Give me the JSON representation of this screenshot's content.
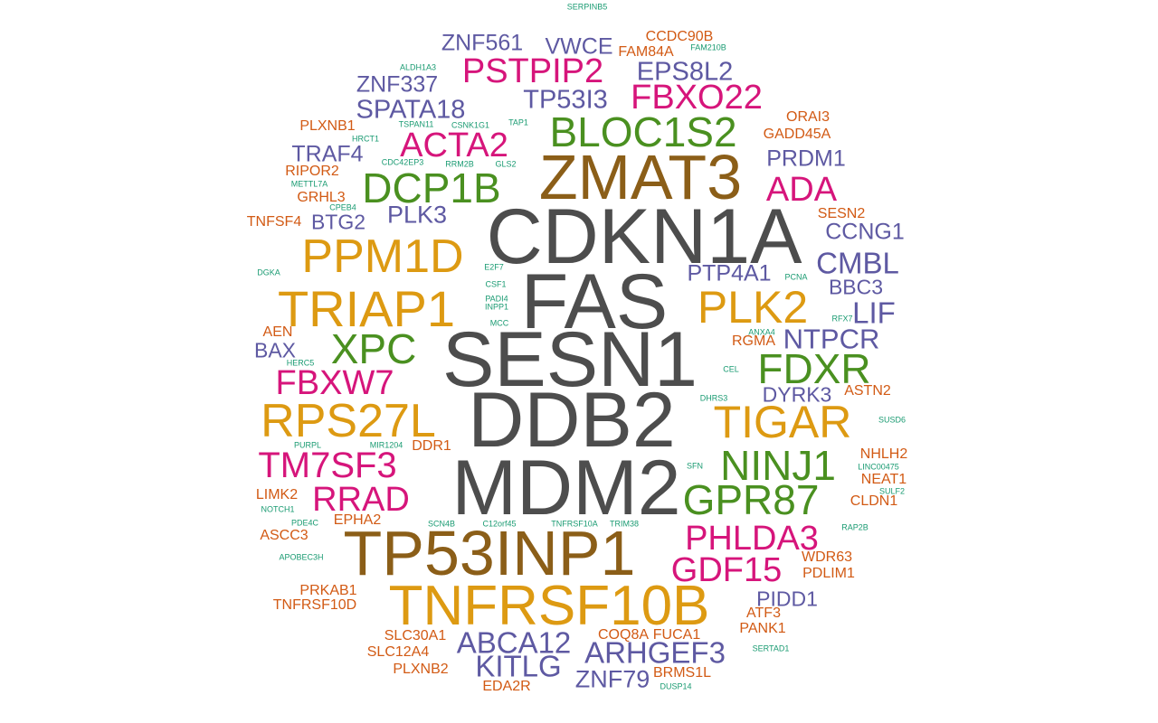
{
  "palette": {
    "gray": "#4d4d4d",
    "brown": "#8b5e18",
    "gold": "#dd9a12",
    "magenta": "#d6157b",
    "green": "#4a9020",
    "purple": "#5e59a2",
    "orange": "#d25a14",
    "teal": "#1a9b72"
  },
  "words": [
    {
      "text": "CDKN1A",
      "color": "gray"
    },
    {
      "text": "FAS",
      "color": "gray"
    },
    {
      "text": "SESN1",
      "color": "gray"
    },
    {
      "text": "DDB2",
      "color": "gray"
    },
    {
      "text": "MDM2",
      "color": "gray"
    },
    {
      "text": "ZMAT3",
      "color": "brown"
    },
    {
      "text": "TP53INP1",
      "color": "brown"
    },
    {
      "text": "TNFRSF10B",
      "color": "gold"
    },
    {
      "text": "PPM1D",
      "color": "gold"
    },
    {
      "text": "TRIAP1",
      "color": "gold"
    },
    {
      "text": "RPS27L",
      "color": "gold"
    },
    {
      "text": "TIGAR",
      "color": "gold"
    },
    {
      "text": "PLK2",
      "color": "gold"
    },
    {
      "text": "BLOC1S2",
      "color": "green"
    },
    {
      "text": "DCP1B",
      "color": "green"
    },
    {
      "text": "XPC",
      "color": "green"
    },
    {
      "text": "FDXR",
      "color": "green"
    },
    {
      "text": "NINJ1",
      "color": "green"
    },
    {
      "text": "GPR87",
      "color": "green"
    },
    {
      "text": "PSTPIP2",
      "color": "magenta"
    },
    {
      "text": "FBXO22",
      "color": "magenta"
    },
    {
      "text": "ACTA2",
      "color": "magenta"
    },
    {
      "text": "ADA",
      "color": "magenta"
    },
    {
      "text": "FBXW7",
      "color": "magenta"
    },
    {
      "text": "TM7SF3",
      "color": "magenta"
    },
    {
      "text": "RRAD",
      "color": "magenta"
    },
    {
      "text": "PHLDA3",
      "color": "magenta"
    },
    {
      "text": "GDF15",
      "color": "magenta"
    },
    {
      "text": "ZNF561",
      "color": "purple"
    },
    {
      "text": "VWCE",
      "color": "purple"
    },
    {
      "text": "EPS8L2",
      "color": "purple"
    },
    {
      "text": "ZNF337",
      "color": "purple"
    },
    {
      "text": "SPATA18",
      "color": "purple"
    },
    {
      "text": "TP53I3",
      "color": "purple"
    },
    {
      "text": "TRAF4",
      "color": "purple"
    },
    {
      "text": "PRDM1",
      "color": "purple"
    },
    {
      "text": "BTG2",
      "color": "purple"
    },
    {
      "text": "PLK3",
      "color": "purple"
    },
    {
      "text": "CCNG1",
      "color": "purple"
    },
    {
      "text": "CMBL",
      "color": "purple"
    },
    {
      "text": "PTP4A1",
      "color": "purple"
    },
    {
      "text": "BBC3",
      "color": "purple"
    },
    {
      "text": "LIF",
      "color": "purple"
    },
    {
      "text": "NTPCR",
      "color": "purple"
    },
    {
      "text": "BAX",
      "color": "purple"
    },
    {
      "text": "DYRK3",
      "color": "purple"
    },
    {
      "text": "PIDD1",
      "color": "purple"
    },
    {
      "text": "ABCA12",
      "color": "purple"
    },
    {
      "text": "ARHGEF3",
      "color": "purple"
    },
    {
      "text": "KITLG",
      "color": "purple"
    },
    {
      "text": "ZNF79",
      "color": "purple"
    },
    {
      "text": "CCDC90B",
      "color": "orange"
    },
    {
      "text": "FAM84A",
      "color": "orange"
    },
    {
      "text": "ORAI3",
      "color": "orange"
    },
    {
      "text": "GADD45A",
      "color": "orange"
    },
    {
      "text": "PLXNB1",
      "color": "orange"
    },
    {
      "text": "RIPOR2",
      "color": "orange"
    },
    {
      "text": "GRHL3",
      "color": "orange"
    },
    {
      "text": "TNFSF4",
      "color": "orange"
    },
    {
      "text": "SESN2",
      "color": "orange"
    },
    {
      "text": "AEN",
      "color": "orange"
    },
    {
      "text": "RGMA",
      "color": "orange"
    },
    {
      "text": "ASTN2",
      "color": "orange"
    },
    {
      "text": "DDR1",
      "color": "orange"
    },
    {
      "text": "NHLH2",
      "color": "orange"
    },
    {
      "text": "NEAT1",
      "color": "orange"
    },
    {
      "text": "LIMK2",
      "color": "orange"
    },
    {
      "text": "CLDN1",
      "color": "orange"
    },
    {
      "text": "EPHA2",
      "color": "orange"
    },
    {
      "text": "ASCC3",
      "color": "orange"
    },
    {
      "text": "WDR63",
      "color": "orange"
    },
    {
      "text": "PDLIM1",
      "color": "orange"
    },
    {
      "text": "PRKAB1",
      "color": "orange"
    },
    {
      "text": "TNFRSF10D",
      "color": "orange"
    },
    {
      "text": "ATF3",
      "color": "orange"
    },
    {
      "text": "PANK1",
      "color": "orange"
    },
    {
      "text": "SLC30A1",
      "color": "orange"
    },
    {
      "text": "COQ8A",
      "color": "orange"
    },
    {
      "text": "FUCA1",
      "color": "orange"
    },
    {
      "text": "SLC12A4",
      "color": "orange"
    },
    {
      "text": "PLXNB2",
      "color": "orange"
    },
    {
      "text": "BRMS1L",
      "color": "orange"
    },
    {
      "text": "EDA2R",
      "color": "orange"
    },
    {
      "text": "SERPINB5",
      "color": "teal"
    },
    {
      "text": "FAM210B",
      "color": "teal"
    },
    {
      "text": "ALDH1A3",
      "color": "teal"
    },
    {
      "text": "TSPAN11",
      "color": "teal"
    },
    {
      "text": "CSNK1G1",
      "color": "teal"
    },
    {
      "text": "TAP1",
      "color": "teal"
    },
    {
      "text": "HRCT1",
      "color": "teal"
    },
    {
      "text": "CDC42EP3",
      "color": "teal"
    },
    {
      "text": "RRM2B",
      "color": "teal"
    },
    {
      "text": "GLS2",
      "color": "teal"
    },
    {
      "text": "METTL7A",
      "color": "teal"
    },
    {
      "text": "CPEB4",
      "color": "teal"
    },
    {
      "text": "DGKA",
      "color": "teal"
    },
    {
      "text": "E2F7",
      "color": "teal"
    },
    {
      "text": "CSF1",
      "color": "teal"
    },
    {
      "text": "PADI4",
      "color": "teal"
    },
    {
      "text": "INPP1",
      "color": "teal"
    },
    {
      "text": "MCC",
      "color": "teal"
    },
    {
      "text": "PCNA",
      "color": "teal"
    },
    {
      "text": "RFX7",
      "color": "teal"
    },
    {
      "text": "ANXA4",
      "color": "teal"
    },
    {
      "text": "HERC5",
      "color": "teal"
    },
    {
      "text": "CEL",
      "color": "teal"
    },
    {
      "text": "DHRS3",
      "color": "teal"
    },
    {
      "text": "SUSD6",
      "color": "teal"
    },
    {
      "text": "PURPL",
      "color": "teal"
    },
    {
      "text": "MIR1204",
      "color": "teal"
    },
    {
      "text": "SFN",
      "color": "teal"
    },
    {
      "text": "LINC00475",
      "color": "teal"
    },
    {
      "text": "SULF2",
      "color": "teal"
    },
    {
      "text": "NOTCH1",
      "color": "teal"
    },
    {
      "text": "PDE4C",
      "color": "teal"
    },
    {
      "text": "SCN4B",
      "color": "teal"
    },
    {
      "text": "C12orf45",
      "color": "teal"
    },
    {
      "text": "TNFRSF10A",
      "color": "teal"
    },
    {
      "text": "TRIM38",
      "color": "teal"
    },
    {
      "text": "RAP2B",
      "color": "teal"
    },
    {
      "text": "APOBEC3H",
      "color": "teal"
    },
    {
      "text": "SERTAD1",
      "color": "teal"
    },
    {
      "text": "DUSP14",
      "color": "teal"
    }
  ]
}
